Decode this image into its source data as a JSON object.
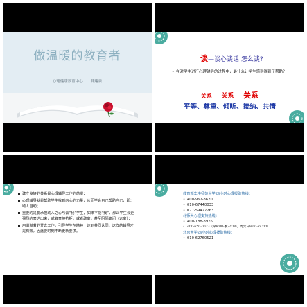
{
  "slide1": {
    "title": "做温暖的教育者",
    "subtitle": "心理健康教育中心　　韩建泉"
  },
  "slide2": {
    "title_prefix": "谈",
    "title_rest": "—谈心谈话  怎么谈?",
    "bullet": "在对学生进行心理辅导的过程中，最什么让学生感到得到了帮助？",
    "relations": [
      "关系",
      "关系",
      "关系"
    ],
    "principles": "平等、尊重、倾听、接纳、共情"
  },
  "slide3": {
    "items": [
      "建立良好的关系是心理辅导工作的前提；",
      "心理辅导就是帮助学生找到内心的力量，从而学会自己帮助自己，即：助人自助；",
      "重要的是要承担助人之心与去“我”学生，如果不能“我”，那么学生会更强烈的表达出来，或者直接抗拒，或者疏离，甚至阻隔离闭（远离）；",
      "用满溢着的爱去工作，引导学生在精神上达到共同认同，这样的辅导才是有效，因此要时刻不断更新要求。"
    ]
  },
  "slide4": {
    "heading1": "教育部华中师范大学24小时心理援助热线：",
    "phone1": "400-967-8620",
    "phone2": "010-67440033",
    "phone3": "027-59427263",
    "heading2": "北师大心理支持热线：",
    "phone4": "400-188-8976",
    "phone5": "400-650-0023（早8:00-晚24:00，周六日9:00-24:00）",
    "heading3": "北京大学24小时心理援助热线：",
    "phone6": "010-62760521"
  },
  "colors": {
    "accent_red": "#e00000",
    "accent_blue": "#1f3aa6",
    "teal_deco": "#2a9d8f"
  }
}
